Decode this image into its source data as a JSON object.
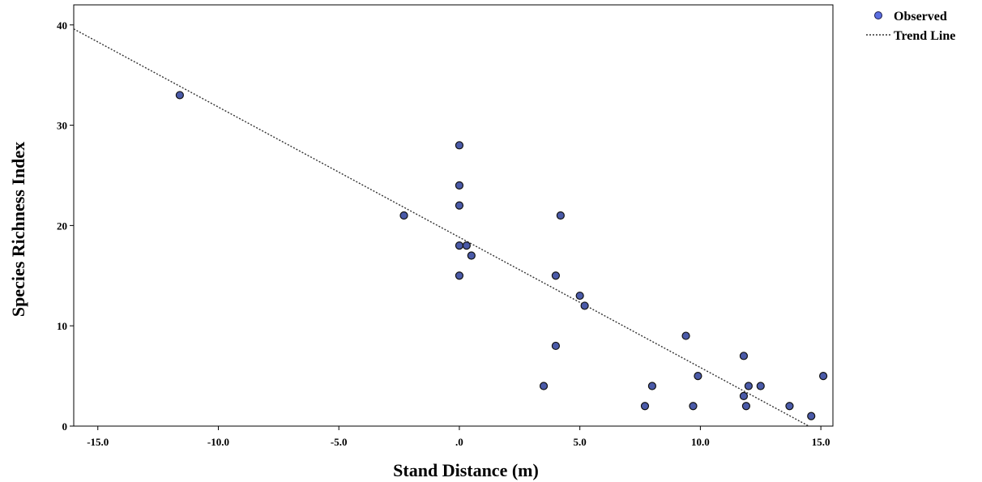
{
  "chart_data": {
    "type": "scatter",
    "title": "",
    "xlabel": "Stand Distance (m)",
    "ylabel": "Species Richness Index",
    "xlim": [
      -16,
      15.5
    ],
    "ylim": [
      0,
      42
    ],
    "x_ticks": [
      -15,
      -10,
      -5,
      0,
      5,
      10,
      15
    ],
    "x_tick_labels": [
      "-15.0",
      "-10.0",
      "-5.0",
      ".0",
      "5.0",
      "10.0",
      "15.0"
    ],
    "y_ticks": [
      0,
      10,
      20,
      30,
      40
    ],
    "y_tick_labels": [
      "0",
      "10",
      "20",
      "30",
      "40"
    ],
    "grid": false,
    "legend_position": "outside-top-right",
    "series": [
      {
        "name": "Observed",
        "kind": "points",
        "color": "#4a5aa8",
        "points": [
          [
            -11.6,
            33
          ],
          [
            -2.3,
            21
          ],
          [
            0,
            28
          ],
          [
            0,
            24
          ],
          [
            0,
            22
          ],
          [
            0,
            18
          ],
          [
            0.3,
            18
          ],
          [
            0.5,
            17
          ],
          [
            0,
            15
          ],
          [
            4.2,
            21
          ],
          [
            4.0,
            15
          ],
          [
            5.0,
            13
          ],
          [
            5.2,
            12
          ],
          [
            4.0,
            8
          ],
          [
            3.5,
            4
          ],
          [
            7.7,
            2
          ],
          [
            8.0,
            4
          ],
          [
            9.4,
            9
          ],
          [
            9.7,
            2
          ],
          [
            9.9,
            5
          ],
          [
            11.8,
            7
          ],
          [
            11.8,
            3
          ],
          [
            11.9,
            2
          ],
          [
            12.0,
            4
          ],
          [
            12.5,
            4
          ],
          [
            13.7,
            2
          ],
          [
            14.6,
            1
          ],
          [
            15.1,
            5
          ]
        ]
      },
      {
        "name": "Trend Line",
        "kind": "line",
        "style": "dotted",
        "color": "#333333",
        "points": [
          [
            -16,
            39.6
          ],
          [
            14.5,
            0
          ]
        ]
      }
    ]
  }
}
